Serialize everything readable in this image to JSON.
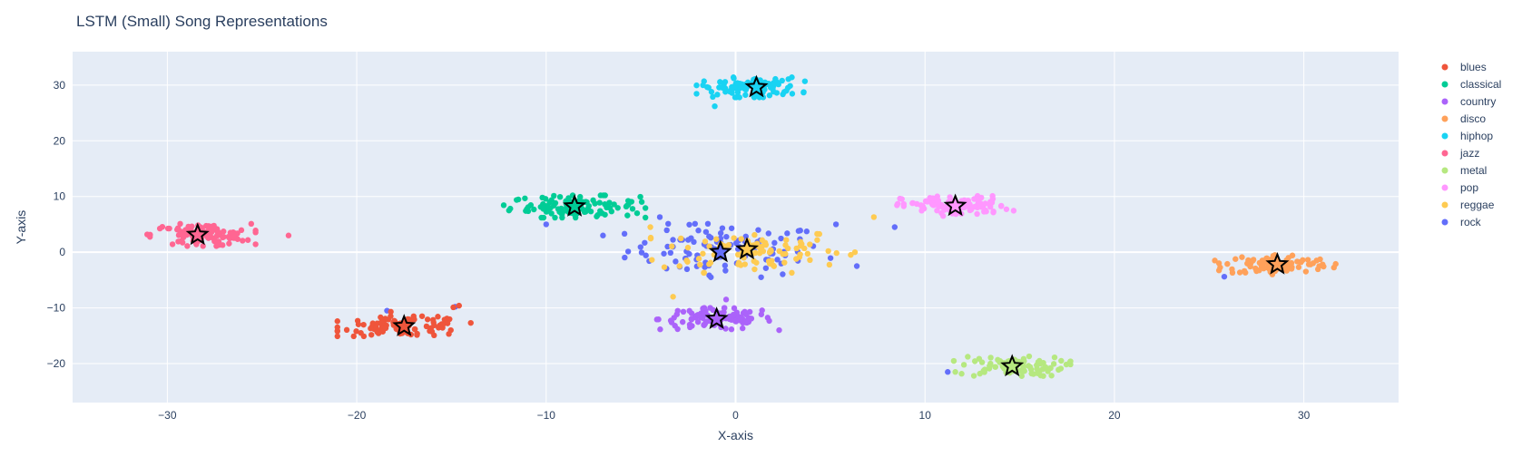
{
  "chart_data": {
    "type": "scatter",
    "title": "LSTM (Small) Song Representations",
    "xlabel": "X-axis",
    "ylabel": "Y-axis",
    "xlim": [
      -35,
      35
    ],
    "ylim": [
      -27,
      36
    ],
    "xticks": [
      -30,
      -20,
      -10,
      0,
      10,
      20,
      30
    ],
    "yticks": [
      -20,
      -10,
      0,
      10,
      20,
      30
    ],
    "xtick_labels": [
      "−30",
      "−20",
      "−10",
      "0",
      "10",
      "20",
      "30"
    ],
    "ytick_labels": [
      "−20",
      "−10",
      "0",
      "10",
      "20",
      "30"
    ],
    "grid": true,
    "legend_position": "top-right",
    "series": [
      {
        "name": "blues",
        "color": "#EF553B",
        "centroid": [
          -17.5,
          -13.3
        ],
        "cluster": {
          "cx": -17.5,
          "cy": -13.3,
          "sx": 1.6,
          "sy": 0.9,
          "n": 100
        },
        "outliers": [
          [
            -14.6,
            -9.6
          ],
          [
            -14.9,
            -9.9
          ],
          [
            -18.2,
            -10.7
          ]
        ]
      },
      {
        "name": "classical",
        "color": "#00CC96",
        "centroid": [
          -8.5,
          8.2
        ],
        "cluster": {
          "cx": -8.5,
          "cy": 8.2,
          "sx": 1.7,
          "sy": 1.0,
          "n": 110
        },
        "outliers": [
          [
            -5.2,
            7.0
          ],
          [
            -10.2,
            9.8
          ]
        ]
      },
      {
        "name": "country",
        "color": "#AB63FA",
        "centroid": [
          -1.0,
          -12.0
        ],
        "cluster": {
          "cx": -1.0,
          "cy": -12.0,
          "sx": 1.5,
          "sy": 1.0,
          "n": 110
        },
        "outliers": [
          [
            -0.5,
            -8.5
          ]
        ]
      },
      {
        "name": "disco",
        "color": "#FFA15A",
        "centroid": [
          28.6,
          -2.2
        ],
        "cluster": {
          "cx": 28.6,
          "cy": -2.2,
          "sx": 1.4,
          "sy": 0.9,
          "n": 100
        },
        "outliers": [
          [
            25.3,
            -1.5
          ]
        ]
      },
      {
        "name": "hiphop",
        "color": "#19D3F3",
        "centroid": [
          1.1,
          29.6
        ],
        "cluster": {
          "cx": 0.8,
          "cy": 29.6,
          "sx": 1.3,
          "sy": 0.9,
          "n": 110
        },
        "outliers": [
          [
            -1.1,
            26.2
          ]
        ]
      },
      {
        "name": "jazz",
        "color": "#FF6692",
        "centroid": [
          -28.4,
          3.1
        ],
        "cluster": {
          "cx": -28.2,
          "cy": 3.1,
          "sx": 1.3,
          "sy": 1.0,
          "n": 100
        },
        "outliers": [
          [
            -23.6,
            3.0
          ]
        ]
      },
      {
        "name": "metal",
        "color": "#B6E880",
        "centroid": [
          14.6,
          -20.5
        ],
        "cluster": {
          "cx": 14.6,
          "cy": -20.5,
          "sx": 1.4,
          "sy": 0.9,
          "n": 90
        },
        "outliers": [
          [
            11.6,
            -21.5
          ]
        ]
      },
      {
        "name": "pop",
        "color": "#FF97FF",
        "centroid": [
          11.6,
          8.3
        ],
        "cluster": {
          "cx": 11.6,
          "cy": 8.3,
          "sx": 1.4,
          "sy": 0.9,
          "n": 100
        },
        "outliers": []
      },
      {
        "name": "reggae",
        "color": "#FECB52",
        "centroid": [
          0.6,
          0.5
        ],
        "cluster": {
          "cx": 0.8,
          "cy": 0.3,
          "sx": 2.4,
          "sy": 2.0,
          "n": 90
        },
        "outliers": [
          [
            7.3,
            6.3
          ],
          [
            -4.5,
            4.5
          ],
          [
            6.3,
            0.0
          ],
          [
            -3.3,
            -8.0
          ]
        ]
      },
      {
        "name": "rock",
        "color": "#636EFA",
        "centroid": [
          -0.8,
          0.0
        ],
        "cluster": {
          "cx": -0.5,
          "cy": 0.3,
          "sx": 2.6,
          "sy": 2.4,
          "n": 100
        },
        "outliers": [
          [
            -18.4,
            -10.5
          ],
          [
            -14.8,
            -9.8
          ],
          [
            8.4,
            4.5
          ],
          [
            6.4,
            -2.5
          ],
          [
            25.8,
            -4.4
          ],
          [
            11.2,
            -21.5
          ],
          [
            -10.0,
            5.0
          ],
          [
            -7.0,
            3.0
          ],
          [
            5.3,
            5.0
          ],
          [
            -4.0,
            6.3
          ]
        ]
      }
    ]
  }
}
